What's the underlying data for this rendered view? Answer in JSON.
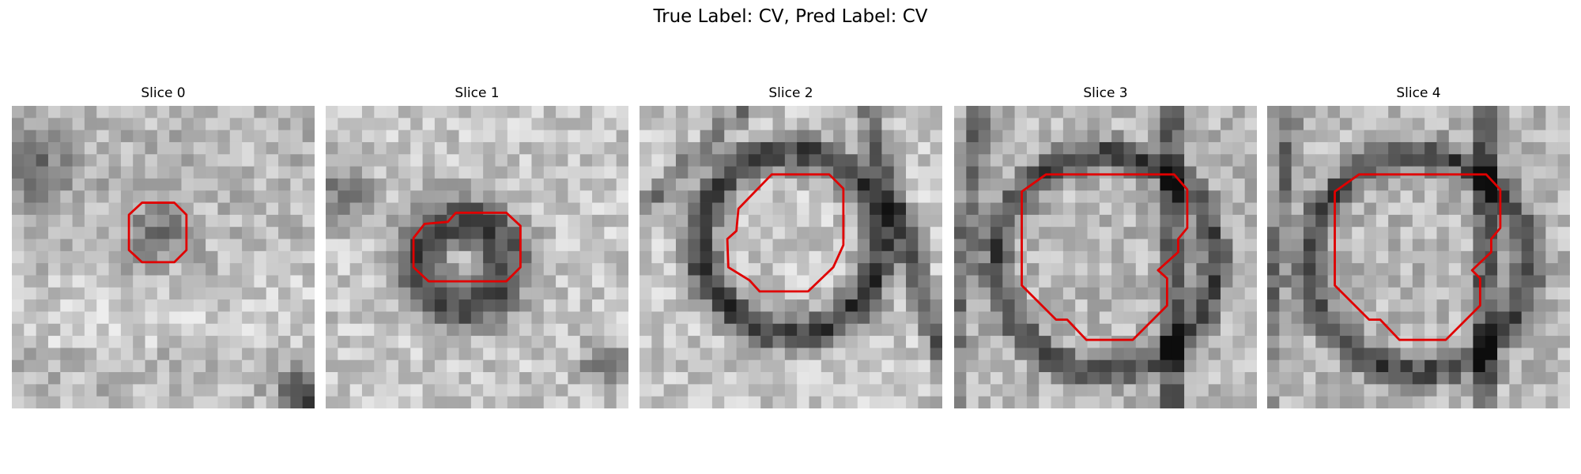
{
  "title": "True Label: CV, Pred Label: CV",
  "panels": [
    {
      "title": "Slice 0"
    },
    {
      "title": "Slice 1"
    },
    {
      "title": "Slice 2"
    },
    {
      "title": "Slice 3"
    },
    {
      "title": "Slice 4"
    }
  ]
}
